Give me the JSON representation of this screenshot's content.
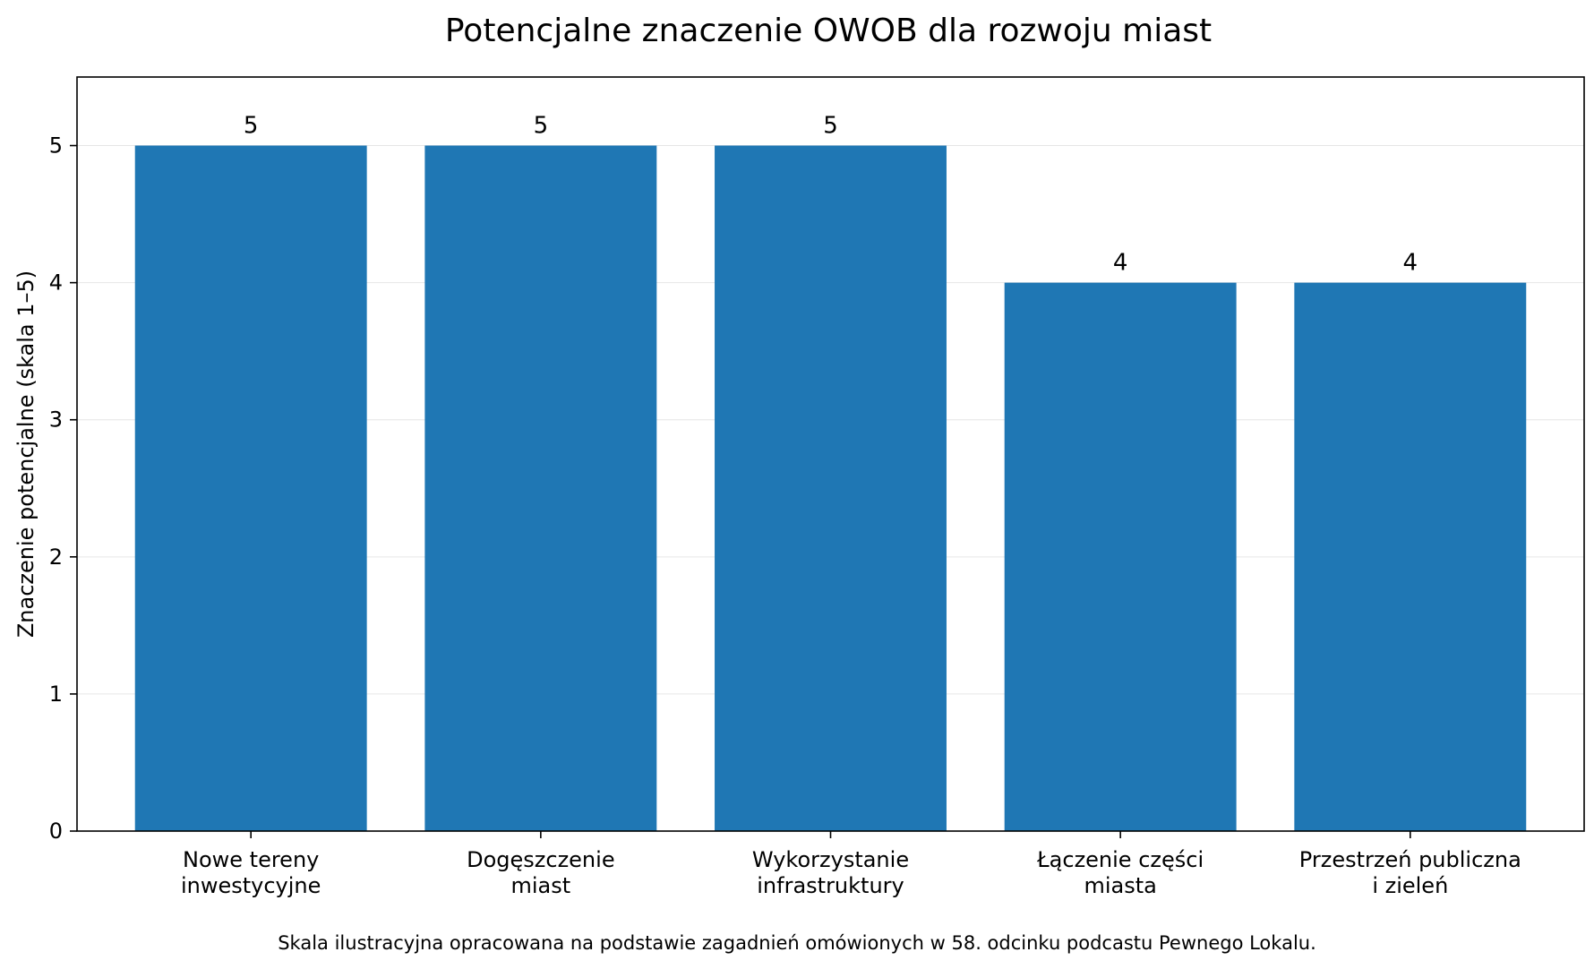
{
  "chart_data": {
    "type": "bar",
    "title": "Potencjalne znaczenie OWOB dla rozwoju miast",
    "ylabel": "Znaczenie potencjalne (skala 1–5)",
    "xlabel": "",
    "categories": [
      [
        "Nowe tereny",
        "inwestycyjne"
      ],
      [
        "Dogęszczenie",
        "miast"
      ],
      [
        "Wykorzystanie",
        "infrastruktury"
      ],
      [
        "Łączenie części",
        "miasta"
      ],
      [
        "Przestrzeń publiczna",
        "i zieleń"
      ]
    ],
    "values": [
      5,
      5,
      5,
      4,
      4
    ],
    "value_labels": [
      "5",
      "5",
      "5",
      "4",
      "4"
    ],
    "ylim": [
      0,
      5.5
    ],
    "yticks": [
      0,
      1,
      2,
      3,
      4,
      5
    ],
    "ytick_labels": [
      "0",
      "1",
      "2",
      "3",
      "4",
      "5"
    ],
    "grid": "horizontal",
    "bar_color": "#1f77b4",
    "footnote": "Skala ilustracyjna opracowana na podstawie zagadnień omówionych w 58. odcinku podcastu Pewnego Lokalu."
  }
}
